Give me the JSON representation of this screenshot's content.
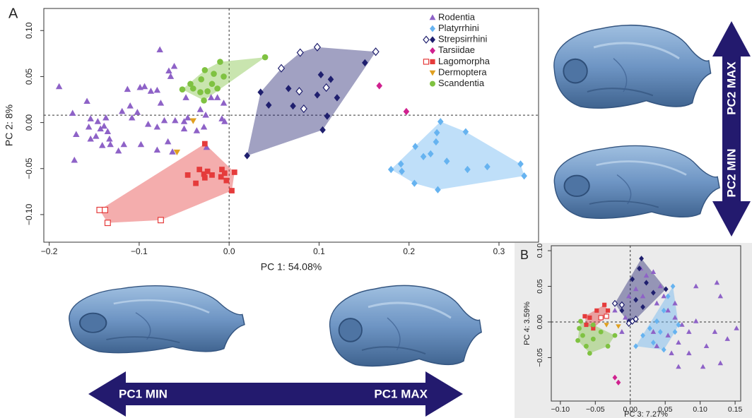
{
  "arrows": {
    "pc1_min": "PC1 MIN",
    "pc1_max": "PC1 MAX",
    "pc2_max": "PC2 MAX",
    "pc2_min": "PC2 MIN"
  },
  "chart_data": [
    {
      "type": "scatter",
      "panel": "A",
      "xlabel": "PC 1: 54.08%",
      "ylabel": "PC 2: 8%",
      "xlim": [
        -0.206,
        0.344
      ],
      "ylim": [
        -0.13,
        0.124
      ],
      "xticks": [
        {
          "value": -0.2,
          "label": "−0.2"
        },
        {
          "value": -0.1,
          "label": "−0.1"
        },
        {
          "value": 0,
          "label": "0.0"
        },
        {
          "value": 0.1,
          "label": "0.1"
        },
        {
          "value": 0.2,
          "label": "0.2"
        },
        {
          "value": 0.3,
          "label": "0.3"
        }
      ],
      "yticks": [
        {
          "value": -0.1,
          "label": "−0.10"
        },
        {
          "value": -0.05,
          "label": "−0.05"
        },
        {
          "value": 0,
          "label": "0.00"
        },
        {
          "value": 0.05,
          "label": "0.05"
        },
        {
          "value": 0.1,
          "label": "0.10"
        }
      ],
      "vline": 0,
      "hline": 0.008,
      "legend": "upper right",
      "series": [
        {
          "name": "Rodentia",
          "color": "#8e62c7",
          "marker": "triangle",
          "hull": false,
          "x": [
            -0.189,
            -0.077,
            -0.061,
            -0.067,
            -0.065,
            -0.094,
            -0.099,
            -0.113,
            -0.087,
            -0.158,
            -0.11,
            -0.119,
            -0.102,
            -0.108,
            -0.137,
            -0.154,
            -0.174,
            -0.146,
            -0.139,
            -0.156,
            -0.143,
            -0.135,
            -0.148,
            -0.133,
            -0.154,
            -0.17,
            -0.132,
            -0.141,
            -0.123,
            -0.117,
            -0.098,
            -0.09,
            -0.08,
            -0.072,
            -0.06,
            -0.05,
            -0.068,
            -0.08,
            -0.063,
            -0.05,
            -0.046,
            -0.032,
            -0.02,
            -0.013,
            -0.006,
            -0.026,
            -0.008,
            -0.005,
            -0.028,
            -0.036,
            -0.076,
            -0.172,
            -0.08,
            -0.048,
            -0.025
          ],
          "y": [
            0.039,
            0.079,
            0.061,
            0.056,
            0.05,
            0.039,
            0.038,
            0.036,
            0.034,
            0.023,
            0.018,
            0.012,
            0.011,
            0.005,
            0.005,
            0.004,
            0.01,
            0.001,
            -0.004,
            -0.005,
            -0.007,
            -0.01,
            -0.015,
            -0.018,
            -0.018,
            -0.013,
            -0.024,
            -0.025,
            -0.031,
            -0.024,
            -0.024,
            -0.002,
            -0.005,
            0.002,
            0.002,
            0.001,
            -0.021,
            -0.03,
            -0.032,
            -0.007,
            0.005,
            0.014,
            0.027,
            0.027,
            0.021,
            0.008,
            0.004,
            0.001,
            -0.005,
            -0.009,
            0.021,
            -0.041,
            0.035,
            0.027,
            -0.027
          ]
        },
        {
          "name": "Platyrrhini",
          "color": "#66b3f0",
          "marker": "diamond",
          "hull": true,
          "x": [
            0.18,
            0.191,
            0.192,
            0.207,
            0.216,
            0.224,
            0.235,
            0.231,
            0.23,
            0.263,
            0.242,
            0.206,
            0.232,
            0.265,
            0.287,
            0.324,
            0.328
          ],
          "y": [
            -0.051,
            -0.045,
            -0.053,
            -0.026,
            -0.037,
            -0.034,
            0.001,
            -0.011,
            -0.021,
            -0.01,
            -0.042,
            -0.066,
            -0.073,
            -0.051,
            -0.048,
            -0.045,
            -0.058
          ]
        },
        {
          "name": "Strepsirrhini",
          "color": "#1f1f6e",
          "marker": "diamond",
          "hull": true,
          "x": [
            0.02,
            0.035,
            0.058,
            0.079,
            0.098,
            0.163,
            0.151,
            0.044,
            0.066,
            0.078,
            0.083,
            0.102,
            0.113,
            0.108,
            0.098,
            0.12,
            0.109,
            0.104,
            0.071
          ],
          "y": [
            -0.036,
            0.033,
            0.059,
            0.076,
            0.082,
            0.077,
            0.065,
            0.019,
            0.037,
            0.034,
            0.015,
            0.052,
            0.047,
            0.038,
            0.03,
            0.027,
            0.007,
            -0.008,
            0.018
          ],
          "open": [
            false,
            false,
            true,
            true,
            true,
            true,
            false,
            false,
            false,
            true,
            true,
            false,
            false,
            true,
            false,
            false,
            false,
            false,
            false
          ]
        },
        {
          "name": "Tarsiidae",
          "color": "#d0218f",
          "marker": "diamond",
          "hull": false,
          "x": [
            0.167,
            0.197
          ],
          "y": [
            0.04,
            0.012
          ]
        },
        {
          "name": "Lagomorpha",
          "color": "#e53b3b",
          "marker": "square",
          "hull": true,
          "x": [
            -0.144,
            -0.138,
            -0.135,
            -0.076,
            -0.033,
            -0.028,
            -0.024,
            -0.027,
            -0.019,
            -0.037,
            -0.046,
            -0.008,
            -0.005,
            -0.009,
            0.006,
            0.003,
            -0.003,
            -0.027
          ],
          "y": [
            -0.095,
            -0.095,
            -0.109,
            -0.106,
            -0.051,
            -0.056,
            -0.053,
            -0.06,
            -0.057,
            -0.066,
            -0.057,
            -0.051,
            -0.055,
            -0.059,
            -0.054,
            -0.074,
            -0.063,
            -0.023
          ],
          "open": [
            true,
            true,
            true,
            true,
            false,
            false,
            false,
            false,
            false,
            false,
            false,
            false,
            false,
            false,
            false,
            false,
            false,
            false
          ]
        },
        {
          "name": "Dermoptera",
          "color": "#e0a020",
          "marker": "triangle-down",
          "hull": false,
          "x": [
            -0.04,
            -0.058
          ],
          "y": [
            0.002,
            -0.032
          ]
        },
        {
          "name": "Scandentia",
          "color": "#7fc241",
          "marker": "circle",
          "hull": true,
          "x": [
            0.04,
            -0.01,
            -0.027,
            -0.017,
            -0.006,
            -0.031,
            -0.019,
            -0.043,
            -0.052,
            -0.024,
            -0.013,
            -0.032,
            -0.028,
            -0.04
          ],
          "y": [
            0.071,
            0.066,
            0.057,
            0.053,
            0.05,
            0.047,
            0.042,
            0.042,
            0.036,
            0.034,
            0.037,
            0.033,
            0.024,
            0.037
          ]
        }
      ]
    },
    {
      "type": "scatter",
      "panel": "B",
      "xlabel": "PC 3: 7.27%",
      "ylabel": "PC 4: 3.59%",
      "xlim": [
        -0.113,
        0.158
      ],
      "ylim": [
        -0.111,
        0.107
      ],
      "xticks": [
        {
          "value": -0.1,
          "label": "−0.10"
        },
        {
          "value": -0.05,
          "label": "−0.05"
        },
        {
          "value": 0,
          "label": "0.00"
        },
        {
          "value": 0.05,
          "label": "0.05"
        },
        {
          "value": 0.1,
          "label": "0.10"
        },
        {
          "value": 0.15,
          "label": "0.15"
        }
      ],
      "yticks": [
        {
          "value": -0.05,
          "label": "−0.05"
        },
        {
          "value": 0,
          "label": "0.00"
        },
        {
          "value": 0.05,
          "label": "0.05"
        },
        {
          "value": 0.1,
          "label": "0.10"
        }
      ],
      "vline": 0,
      "hline": 0,
      "series": [
        {
          "name": "Rodentia",
          "color": "#8e62c7",
          "marker": "triangle",
          "hull": false,
          "x": [
            0.015,
            0.023,
            0.033,
            0.043,
            0.008,
            -0.002,
            0.018,
            0.038,
            0.054,
            0.064,
            0.074,
            0.084,
            0.094,
            0.069,
            0.059,
            0.038,
            0.054,
            0.069,
            0.094,
            0.124,
            0.129,
            0.121,
            0.139,
            0.129,
            0.104,
            0.084,
            0.109,
            0.048,
            -0.022,
            -0.007,
            0.064,
            0.033,
            0.152,
            -0.012
          ],
          "y": [
            0.075,
            0.065,
            0.07,
            0.05,
            0.046,
            0.036,
            0.036,
            0.026,
            0.016,
            0.006,
            -0.004,
            -0.014,
            0.001,
            -0.029,
            -0.044,
            -0.034,
            -0.019,
            -0.063,
            0.05,
            0.055,
            0.036,
            -0.014,
            -0.024,
            -0.058,
            -0.063,
            -0.044,
            -0.034,
            0.036,
            0.016,
            0.006,
            0.026,
            -0.014,
            -0.009,
            -0.014
          ]
        },
        {
          "name": "Platyrrhini",
          "color": "#66b3f0",
          "marker": "diamond",
          "hull": true,
          "x": [
            0.061,
            0.054,
            0.048,
            0.038,
            0.028,
            0.018,
            0.008,
            0.033,
            0.048,
            0.064,
            0.069,
            0.043
          ],
          "y": [
            0.05,
            0.036,
            0.016,
            0.001,
            -0.009,
            -0.019,
            -0.034,
            -0.029,
            -0.039,
            -0.014,
            -0.004,
            -0.014
          ]
        },
        {
          "name": "Strepsirrhini",
          "color": "#1f1f6e",
          "marker": "diamond",
          "hull": true,
          "x": [
            0.016,
            0.013,
            0.003,
            0.023,
            0.033,
            0.051,
            0.008,
            0.018,
            -0.012,
            -0.002,
            -0.022,
            -0.012,
            -0.002,
            0.003,
            0.008
          ],
          "y": [
            0.089,
            0.075,
            0.06,
            0.055,
            0.041,
            0.046,
            0.031,
            0.021,
            0.016,
            0.001,
            0.026,
            0.024,
            -0.002,
            0.001,
            0.004
          ],
          "open": [
            false,
            false,
            false,
            false,
            false,
            false,
            false,
            false,
            false,
            false,
            true,
            true,
            true,
            true,
            true
          ]
        },
        {
          "name": "Tarsiidae",
          "color": "#d0218f",
          "marker": "diamond",
          "hull": false,
          "x": [
            -0.022,
            -0.017
          ],
          "y": [
            -0.078,
            -0.085
          ]
        },
        {
          "name": "Lagomorpha",
          "color": "#e53b3b",
          "marker": "square",
          "hull": true,
          "x": [
            -0.065,
            -0.058,
            -0.048,
            -0.037,
            -0.032,
            -0.063,
            -0.053,
            -0.042,
            -0.034
          ],
          "y": [
            0.008,
            0.006,
            0.016,
            0.024,
            0.016,
            -0.004,
            -0.009,
            0.006,
            0.008
          ],
          "open": [
            false,
            false,
            false,
            false,
            false,
            false,
            false,
            true,
            true
          ]
        },
        {
          "name": "Dermoptera",
          "color": "#e0a020",
          "marker": "triangle-down",
          "hull": false,
          "x": [
            -0.017,
            -0.034
          ],
          "y": [
            -0.006,
            -0.004
          ]
        },
        {
          "name": "Scandentia",
          "color": "#7fc241",
          "marker": "circle",
          "hull": true,
          "x": [
            -0.073,
            -0.068,
            -0.075,
            -0.063,
            -0.053,
            -0.042,
            -0.053,
            -0.032,
            -0.022,
            -0.071,
            -0.058
          ],
          "y": [
            -0.009,
            -0.019,
            -0.026,
            -0.034,
            -0.024,
            -0.014,
            -0.004,
            -0.034,
            -0.019,
            0.001,
            -0.044
          ]
        }
      ]
    }
  ]
}
